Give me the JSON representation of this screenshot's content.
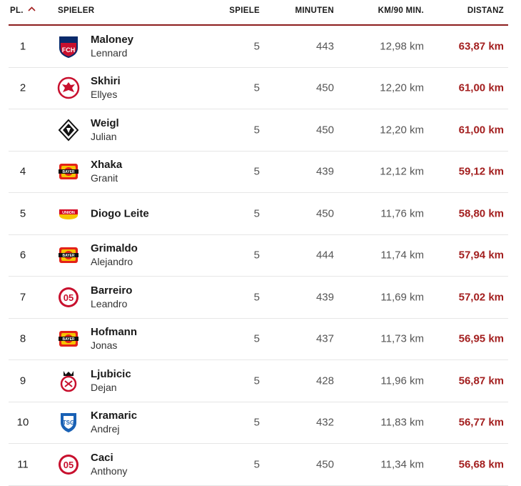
{
  "header": {
    "rank": "PL.",
    "player": "SPIELER",
    "games": "SPIELE",
    "minutes": "MINUTEN",
    "km_per_90": "KM/90 MIN.",
    "distance": "DISTANZ"
  },
  "colors": {
    "accent": "#a31f1f",
    "divider": "#8c1d1d"
  },
  "rows": [
    {
      "rank": "1",
      "last": "Maloney",
      "first": "Lennard",
      "club_icon": "heidenheim-crest-icon",
      "games": "5",
      "minutes": "443",
      "km_per_90": "12,98 km",
      "distance": "63,87 km"
    },
    {
      "rank": "2",
      "last": "Skhiri",
      "first": "Ellyes",
      "club_icon": "frankfurt-eagle-icon",
      "games": "5",
      "minutes": "450",
      "km_per_90": "12,20 km",
      "distance": "61,00 km"
    },
    {
      "rank": "",
      "last": "Weigl",
      "first": "Julian",
      "club_icon": "gladbach-crest-icon",
      "games": "5",
      "minutes": "450",
      "km_per_90": "12,20 km",
      "distance": "61,00 km"
    },
    {
      "rank": "4",
      "last": "Xhaka",
      "first": "Granit",
      "club_icon": "leverkusen-crest-icon",
      "games": "5",
      "minutes": "439",
      "km_per_90": "12,12 km",
      "distance": "59,12 km"
    },
    {
      "rank": "5",
      "last": "Diogo Leite",
      "first": "",
      "club_icon": "union-berlin-crest-icon",
      "games": "5",
      "minutes": "450",
      "km_per_90": "11,76 km",
      "distance": "58,80 km"
    },
    {
      "rank": "6",
      "last": "Grimaldo",
      "first": "Alejandro",
      "club_icon": "leverkusen-crest-icon",
      "games": "5",
      "minutes": "444",
      "km_per_90": "11,74 km",
      "distance": "57,94 km"
    },
    {
      "rank": "7",
      "last": "Barreiro",
      "first": "Leandro",
      "club_icon": "mainz-crest-icon",
      "games": "5",
      "minutes": "439",
      "km_per_90": "11,69 km",
      "distance": "57,02 km"
    },
    {
      "rank": "8",
      "last": "Hofmann",
      "first": "Jonas",
      "club_icon": "leverkusen-crest-icon",
      "games": "5",
      "minutes": "437",
      "km_per_90": "11,73 km",
      "distance": "56,95 km"
    },
    {
      "rank": "9",
      "last": "Ljubicic",
      "first": "Dejan",
      "club_icon": "koeln-crest-icon",
      "games": "5",
      "minutes": "428",
      "km_per_90": "11,96 km",
      "distance": "56,87 km"
    },
    {
      "rank": "10",
      "last": "Kramaric",
      "first": "Andrej",
      "club_icon": "hoffenheim-crest-icon",
      "games": "5",
      "minutes": "432",
      "km_per_90": "11,83 km",
      "distance": "56,77 km"
    },
    {
      "rank": "11",
      "last": "Caci",
      "first": "Anthony",
      "club_icon": "mainz-crest-icon",
      "games": "5",
      "minutes": "450",
      "km_per_90": "11,34 km",
      "distance": "56,68 km"
    }
  ]
}
